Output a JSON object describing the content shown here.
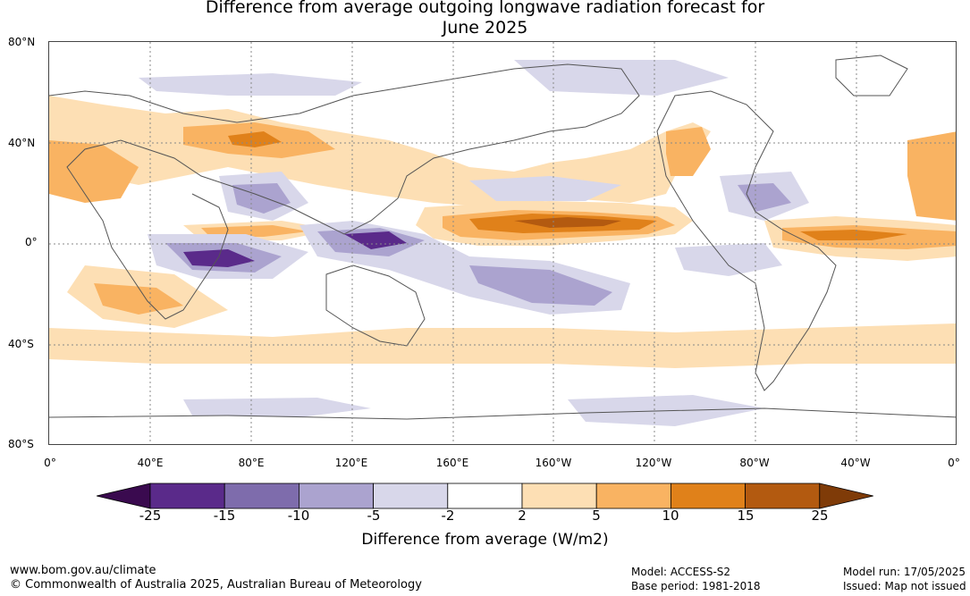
{
  "title_line1": "Difference from average outgoing longwave radiation forecast for",
  "title_line2": "June 2025",
  "lat_labels": [
    "80°N",
    "40°N",
    "0°",
    "40°S",
    "80°S"
  ],
  "lon_labels": [
    "0°",
    "40°E",
    "80°E",
    "120°E",
    "160°E",
    "160°W",
    "120°W",
    "80°W",
    "40°W",
    "0°"
  ],
  "colorbar": {
    "label": "Difference from average (W/m2)",
    "ticks": [
      "-25",
      "-15",
      "-10",
      "-5",
      "-2",
      "2",
      "5",
      "10",
      "15",
      "25"
    ],
    "colors": [
      "#3a0a4f",
      "#5a2a8a",
      "#7e6cac",
      "#aba3cf",
      "#d8d7ea",
      "#ffffff",
      "#fddfb4",
      "#f9b362",
      "#e0811a",
      "#b35a10",
      "#7f3b08"
    ]
  },
  "footer": {
    "url": "www.bom.gov.au/climate",
    "copyright": "© Commonwealth of Australia 2025, Australian Bureau of Meteorology",
    "model": "Model: ACCESS-S2",
    "base_period": "Base period: 1981-2018",
    "model_run": "Model run: 17/05/2025",
    "issued": "Issued: Map not issued"
  }
}
